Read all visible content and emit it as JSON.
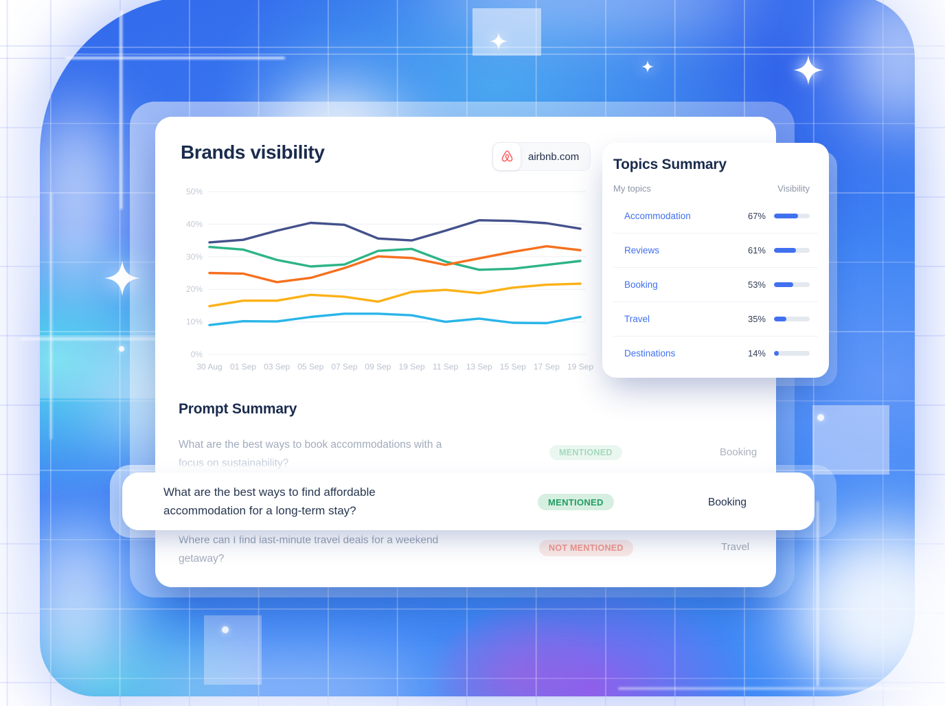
{
  "brand_card": {
    "title": "Brands visibility",
    "domain_badge": {
      "label": "airbnb.com",
      "icon": "airbnb-belo-icon",
      "icon_color": "#FF5A5F"
    }
  },
  "chart_data": {
    "type": "line",
    "title": "Brands visibility",
    "x": [
      "30 Aug",
      "01 Sep",
      "03 Sep",
      "05 Sep",
      "07 Sep",
      "09 Sep",
      "19 Sep",
      "11 Sep",
      "13 Sep",
      "15 Sep",
      "17 Sep",
      "19 Sep"
    ],
    "y_ticks": [
      50,
      40,
      30,
      20,
      10,
      0
    ],
    "y_tick_labels": [
      "50%",
      "40%",
      "30%",
      "20%",
      "10%",
      "0%"
    ],
    "ylim": [
      0,
      50
    ],
    "unit": "%",
    "grid": "horizontal",
    "legend": "none",
    "series": [
      {
        "name": "navy",
        "color": "#44518C",
        "values": [
          34.4,
          35.2,
          38.0,
          40.4,
          39.8,
          35.6,
          35.0,
          38.0,
          41.2,
          41.0,
          40.3,
          38.6
        ]
      },
      {
        "name": "green",
        "color": "#2DB487",
        "values": [
          33.0,
          32.2,
          29.0,
          27.0,
          27.6,
          31.8,
          32.4,
          28.5,
          26.0,
          26.3,
          27.5,
          28.7
        ]
      },
      {
        "name": "orange",
        "color": "#F5701E",
        "values": [
          25.0,
          24.8,
          22.2,
          23.5,
          26.5,
          30.1,
          29.6,
          27.5,
          29.5,
          31.5,
          33.2,
          32.0
        ]
      },
      {
        "name": "yellow",
        "color": "#FBB117",
        "values": [
          14.8,
          16.5,
          16.5,
          18.3,
          17.7,
          16.2,
          19.2,
          19.8,
          18.8,
          20.5,
          21.4,
          21.7
        ]
      },
      {
        "name": "cyan",
        "color": "#29B5E8",
        "values": [
          9.0,
          10.2,
          10.1,
          11.5,
          12.5,
          12.5,
          12.0,
          10.0,
          11.0,
          9.7,
          9.6,
          11.5
        ]
      }
    ]
  },
  "topics_summary": {
    "title": "Topics Summary",
    "columns": {
      "topics": "My topics",
      "visibility": "Visibility"
    },
    "accent_color": "#4070F0",
    "rows": [
      {
        "label": "Accommodation",
        "visibility_label": "67%",
        "visibility_pct": 67
      },
      {
        "label": "Reviews",
        "visibility_label": "61%",
        "visibility_pct": 61
      },
      {
        "label": "Booking",
        "visibility_label": "53%",
        "visibility_pct": 53
      },
      {
        "label": "Travel",
        "visibility_label": "35%",
        "visibility_pct": 35
      },
      {
        "label": "Destinations",
        "visibility_label": "14%",
        "visibility_pct": 14
      }
    ]
  },
  "prompt_summary": {
    "title": "Prompt Summary",
    "rows": [
      {
        "prompt_line1": "What are the best ways to book accommodations with a",
        "prompt_line2": "focus on sustainability?",
        "status": "MENTIONED",
        "status_type": "mentioned",
        "topic": "Booking",
        "emphasis": "faded"
      },
      {
        "prompt_line1": "What are the best ways to find affordable",
        "prompt_line2": "accommodation for a long-term stay?",
        "status": "MENTIONED",
        "status_type": "mentioned",
        "topic": "Booking",
        "emphasis": "highlighted"
      },
      {
        "prompt_line1": "Where can I find last-minute travel deals for a weekend",
        "prompt_line2": "getaway?",
        "status": "NOT MENTIONED",
        "status_type": "not_mentioned",
        "topic": "Travel",
        "emphasis": "faded"
      }
    ]
  }
}
